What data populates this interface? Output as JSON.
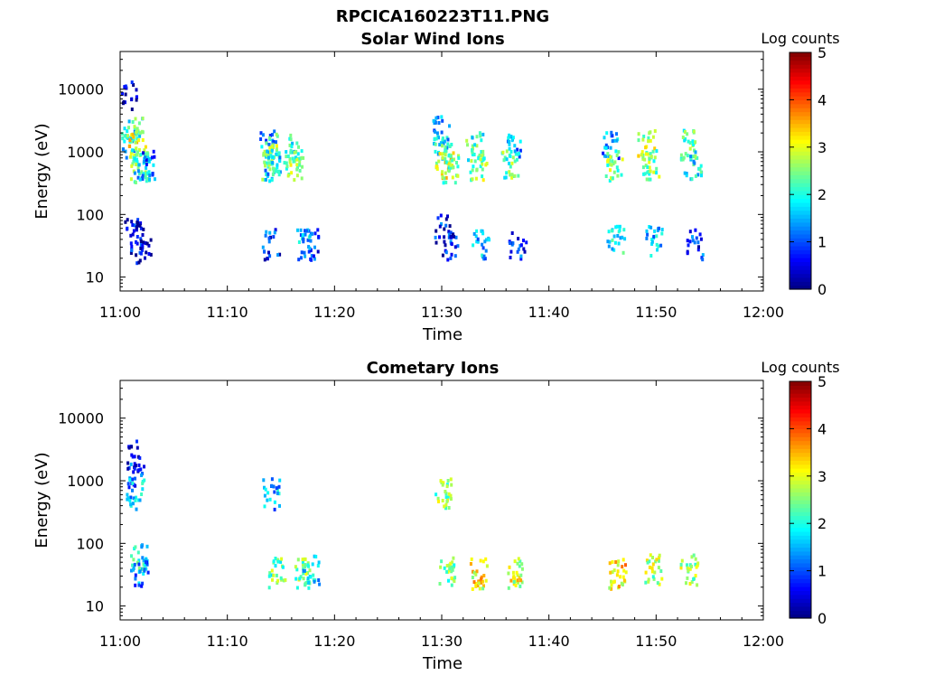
{
  "figure": {
    "filename": "RPCICA160223T11.PNG"
  },
  "chart_data": [
    {
      "type": "heatmap",
      "title": "Solar Wind Ions",
      "xlabel": "Time",
      "ylabel": "Energy (eV)",
      "x_ticks": [
        "11:00",
        "11:10",
        "11:20",
        "11:30",
        "11:40",
        "11:50",
        "12:00"
      ],
      "xlim": [
        "11:00",
        "12:00"
      ],
      "y_scale": "log",
      "y_ticks": [
        10,
        100,
        1000,
        10000
      ],
      "y_tick_labels": [
        "10",
        "100",
        "1000",
        "10000"
      ],
      "ylim": [
        6,
        40000
      ],
      "colorbar": {
        "label": "Log counts",
        "range": [
          0,
          5
        ],
        "ticks": [
          "0",
          "1",
          "2",
          "3",
          "4",
          "5"
        ],
        "colormap": "jet"
      },
      "cells": [
        {
          "time": "11:00:50",
          "energy": 1500,
          "log_counts": 1.8
        },
        {
          "time": "11:01:20",
          "energy": 2200,
          "log_counts": 2.2
        },
        {
          "time": "11:01:30",
          "energy": 1300,
          "log_counts": 3.0
        },
        {
          "time": "11:01:40",
          "energy": 650,
          "log_counts": 2.4
        },
        {
          "time": "11:02:00",
          "energy": 600,
          "log_counts": 2.0
        },
        {
          "time": "11:02:20",
          "energy": 620,
          "log_counts": 1.2
        },
        {
          "time": "11:00:40",
          "energy": 8000,
          "log_counts": 0.3
        },
        {
          "time": "11:01:10",
          "energy": 50,
          "log_counts": 0.5
        },
        {
          "time": "11:01:40",
          "energy": 45,
          "log_counts": 0.6
        },
        {
          "time": "11:02:00",
          "energy": 30,
          "log_counts": 0.4
        },
        {
          "time": "11:13:40",
          "energy": 1300,
          "log_counts": 1.5
        },
        {
          "time": "11:14:00",
          "energy": 1200,
          "log_counts": 2.6
        },
        {
          "time": "11:13:50",
          "energy": 650,
          "log_counts": 2.3
        },
        {
          "time": "11:14:10",
          "energy": 600,
          "log_counts": 1.8
        },
        {
          "time": "11:14:00",
          "energy": 35,
          "log_counts": 0.9
        },
        {
          "time": "11:16:00",
          "energy": 1200,
          "log_counts": 2.0
        },
        {
          "time": "11:16:10",
          "energy": 650,
          "log_counts": 2.6
        },
        {
          "time": "11:17:00",
          "energy": 35,
          "log_counts": 1.6
        },
        {
          "time": "11:17:40",
          "energy": 35,
          "log_counts": 1.0
        },
        {
          "time": "11:29:50",
          "energy": 2300,
          "log_counts": 1.6
        },
        {
          "time": "11:30:00",
          "energy": 1300,
          "log_counts": 2.0
        },
        {
          "time": "11:30:10",
          "energy": 650,
          "log_counts": 3.0
        },
        {
          "time": "11:30:40",
          "energy": 600,
          "log_counts": 2.5
        },
        {
          "time": "11:30:00",
          "energy": 60,
          "log_counts": 0.8
        },
        {
          "time": "11:30:40",
          "energy": 35,
          "log_counts": 0.8
        },
        {
          "time": "11:33:00",
          "energy": 1300,
          "log_counts": 2.2
        },
        {
          "time": "11:33:20",
          "energy": 650,
          "log_counts": 2.6
        },
        {
          "time": "11:33:30",
          "energy": 35,
          "log_counts": 1.6
        },
        {
          "time": "11:36:20",
          "energy": 650,
          "log_counts": 2.4
        },
        {
          "time": "11:36:40",
          "energy": 1300,
          "log_counts": 1.5
        },
        {
          "time": "11:37:00",
          "energy": 35,
          "log_counts": 0.9
        },
        {
          "time": "11:45:40",
          "energy": 1300,
          "log_counts": 1.4
        },
        {
          "time": "11:46:00",
          "energy": 650,
          "log_counts": 2.6
        },
        {
          "time": "11:46:10",
          "energy": 40,
          "log_counts": 2.0
        },
        {
          "time": "11:49:00",
          "energy": 1400,
          "log_counts": 2.8
        },
        {
          "time": "11:49:30",
          "energy": 650,
          "log_counts": 2.5
        },
        {
          "time": "11:49:40",
          "energy": 40,
          "log_counts": 1.6
        },
        {
          "time": "11:53:00",
          "energy": 1400,
          "log_counts": 2.5
        },
        {
          "time": "11:53:20",
          "energy": 650,
          "log_counts": 2.0
        },
        {
          "time": "11:53:30",
          "energy": 35,
          "log_counts": 0.9
        }
      ]
    },
    {
      "type": "heatmap",
      "title": "Cometary Ions",
      "xlabel": "Time",
      "ylabel": "Energy (eV)",
      "x_ticks": [
        "11:00",
        "11:10",
        "11:20",
        "11:30",
        "11:40",
        "11:50",
        "12:00"
      ],
      "xlim": [
        "11:00",
        "12:00"
      ],
      "y_scale": "log",
      "y_ticks": [
        10,
        100,
        1000,
        10000
      ],
      "y_tick_labels": [
        "10",
        "100",
        "1000",
        "10000"
      ],
      "ylim": [
        6,
        40000
      ],
      "colorbar": {
        "label": "Log counts",
        "range": [
          0,
          5
        ],
        "ticks": [
          "0",
          "1",
          "2",
          "3",
          "4",
          "5"
        ],
        "colormap": "jet"
      },
      "cells": [
        {
          "time": "11:01:20",
          "energy": 2600,
          "log_counts": 0.6
        },
        {
          "time": "11:01:20",
          "energy": 1300,
          "log_counts": 0.9
        },
        {
          "time": "11:01:20",
          "energy": 650,
          "log_counts": 1.7
        },
        {
          "time": "11:01:40",
          "energy": 60,
          "log_counts": 2.0
        },
        {
          "time": "11:01:50",
          "energy": 35,
          "log_counts": 1.4
        },
        {
          "time": "11:14:00",
          "energy": 650,
          "log_counts": 1.6
        },
        {
          "time": "11:14:30",
          "energy": 35,
          "log_counts": 2.4
        },
        {
          "time": "11:17:00",
          "energy": 35,
          "log_counts": 2.6
        },
        {
          "time": "11:17:40",
          "energy": 40,
          "log_counts": 1.8
        },
        {
          "time": "11:30:00",
          "energy": 650,
          "log_counts": 2.6
        },
        {
          "time": "11:30:20",
          "energy": 40,
          "log_counts": 2.6
        },
        {
          "time": "11:33:20",
          "energy": 35,
          "log_counts": 3.2
        },
        {
          "time": "11:36:40",
          "energy": 35,
          "log_counts": 3.0
        },
        {
          "time": "11:46:20",
          "energy": 35,
          "log_counts": 3.3
        },
        {
          "time": "11:49:40",
          "energy": 40,
          "log_counts": 2.8
        },
        {
          "time": "11:53:00",
          "energy": 40,
          "log_counts": 2.7
        }
      ]
    }
  ]
}
